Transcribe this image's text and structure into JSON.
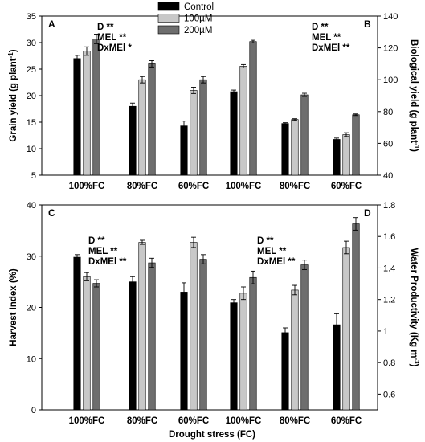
{
  "colors": {
    "Control": "#000000",
    "100µM": "#c8c8c8",
    "200µM": "#6e6e6e"
  },
  "legend": [
    "Control",
    "100µM",
    "200µM"
  ],
  "xlabel": "Drought stress (FC)",
  "chart_data": [
    {
      "type": "bar",
      "panel": "A",
      "ylabel": "Grain yield (g plant",
      "ylabel_sup": "-1",
      "ylabel_end": ")",
      "axis": "left",
      "ylim": [
        5,
        35
      ],
      "yticks": [
        5,
        10,
        15,
        20,
        25,
        30,
        35
      ],
      "categories": [
        "100%FC",
        "80%FC",
        "60%FC"
      ],
      "group": "left",
      "significance": [
        "D **",
        "MEL **",
        "DxMEl *"
      ],
      "series": [
        {
          "name": "Control",
          "values": [
            27.0,
            18.0,
            14.3
          ],
          "errors": [
            0.6,
            0.6,
            0.9
          ]
        },
        {
          "name": "100µM",
          "values": [
            28.4,
            23.0,
            21.0
          ],
          "errors": [
            0.8,
            0.6,
            0.6
          ]
        },
        {
          "name": "200µM",
          "values": [
            30.7,
            26.0,
            23.0
          ],
          "errors": [
            0.9,
            0.6,
            0.6
          ]
        }
      ]
    },
    {
      "type": "bar",
      "panel": "B",
      "ylabel": "Biological yield (g plant",
      "ylabel_sup": "-1",
      "ylabel_end": ")",
      "axis": "right",
      "ylim": [
        40,
        140
      ],
      "yticks": [
        40,
        60,
        80,
        100,
        120,
        140
      ],
      "categories": [
        "100%FC",
        "80%FC",
        "60%FC"
      ],
      "group": "right",
      "significance": [
        "D **",
        "MEL **",
        "DxMEl **"
      ],
      "series": [
        {
          "name": "Control",
          "values": [
            92.5,
            72.5,
            62.5
          ],
          "errors": [
            1.0,
            0.5,
            0.8
          ]
        },
        {
          "name": "100µM",
          "values": [
            108.5,
            75.0,
            65.5
          ],
          "errors": [
            1.0,
            0.5,
            1.2
          ]
        },
        {
          "name": "200µM",
          "values": [
            124.0,
            90.5,
            78.0
          ],
          "errors": [
            0.8,
            1.0,
            0.5
          ]
        }
      ]
    },
    {
      "type": "bar",
      "panel": "C",
      "ylabel": "Harvest Index (%)",
      "ylabel_sup": "",
      "ylabel_end": "",
      "axis": "left",
      "ylim": [
        0,
        40
      ],
      "yticks": [
        0,
        10,
        20,
        30,
        40
      ],
      "categories": [
        "100%FC",
        "80%FC",
        "60%FC"
      ],
      "group": "left",
      "significance": [
        "D **",
        "MEL **",
        "DxMEl **"
      ],
      "series": [
        {
          "name": "Control",
          "values": [
            29.8,
            25.0,
            23.0
          ],
          "errors": [
            0.5,
            1.0,
            1.8
          ]
        },
        {
          "name": "100µM",
          "values": [
            26.0,
            32.7,
            32.7
          ],
          "errors": [
            0.8,
            0.4,
            1.0
          ]
        },
        {
          "name": "200µM",
          "values": [
            24.7,
            28.7,
            29.4
          ],
          "errors": [
            0.7,
            0.9,
            0.9
          ]
        }
      ]
    },
    {
      "type": "bar",
      "panel": "D",
      "ylabel": "Water Productivity (Kg m",
      "ylabel_sup": "-3",
      "ylabel_end": ")",
      "axis": "right",
      "ylim": [
        0.5,
        1.8
      ],
      "yticks": [
        0.6,
        0.8,
        1.0,
        1.2,
        1.4,
        1.6,
        1.8
      ],
      "categories": [
        "100%FC",
        "80%FC",
        "60%FC"
      ],
      "group": "right",
      "significance": [
        "D **",
        "MEL **",
        "DxMEl **"
      ],
      "series": [
        {
          "name": "Control",
          "values": [
            1.18,
            0.99,
            1.04
          ],
          "errors": [
            0.02,
            0.03,
            0.07
          ]
        },
        {
          "name": "100µM",
          "values": [
            1.24,
            1.26,
            1.53
          ],
          "errors": [
            0.04,
            0.03,
            0.04
          ]
        },
        {
          "name": "200µM",
          "values": [
            1.34,
            1.42,
            1.68
          ],
          "errors": [
            0.04,
            0.03,
            0.04
          ]
        }
      ]
    }
  ]
}
